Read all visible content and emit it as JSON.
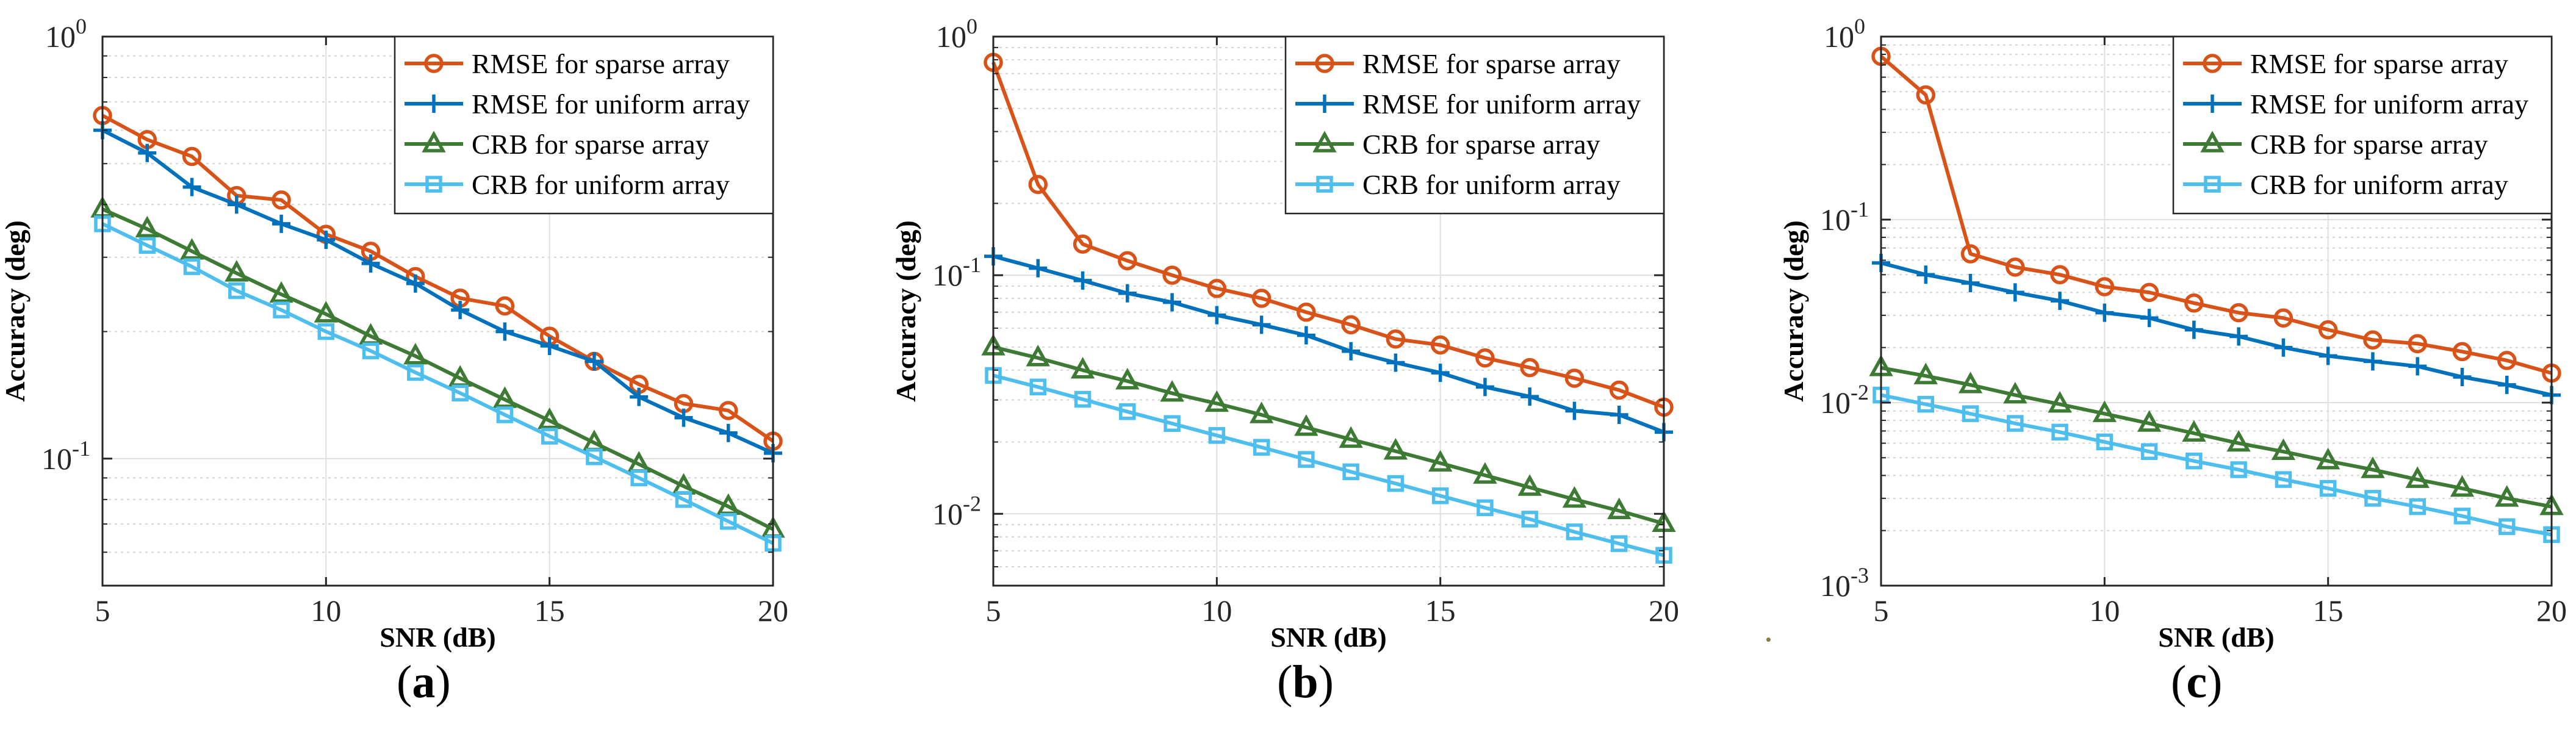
{
  "captions": {
    "a": "a",
    "b": "b",
    "c": "c"
  },
  "chart_data": [
    {
      "type": "line",
      "panel": "a",
      "xlabel": "SNR (dB)",
      "ylabel": "Accuracy (deg)",
      "yscale": "log",
      "xlim": [
        5,
        20
      ],
      "ylim": [
        0.05,
        1
      ],
      "xticks": [
        5,
        10,
        15,
        20
      ],
      "yticks": [
        {
          "value": 0.1,
          "base": "10",
          "exp": "-1"
        },
        {
          "value": 1,
          "base": "10",
          "exp": "0"
        }
      ],
      "grid": true,
      "legend_position": "top-right",
      "x": [
        5,
        6,
        7,
        8,
        9,
        10,
        11,
        12,
        13,
        14,
        15,
        16,
        17,
        18,
        19,
        20
      ],
      "series": [
        {
          "name": "RMSE for sparse array",
          "marker": "circle",
          "color": "#d95319",
          "values": [
            0.65,
            0.57,
            0.52,
            0.42,
            0.41,
            0.34,
            0.31,
            0.27,
            0.24,
            0.23,
            0.195,
            0.17,
            0.15,
            0.135,
            0.13,
            0.11
          ]
        },
        {
          "name": "RMSE for uniform array",
          "marker": "plus",
          "color": "#0072bd",
          "values": [
            0.6,
            0.53,
            0.44,
            0.4,
            0.36,
            0.33,
            0.29,
            0.26,
            0.225,
            0.2,
            0.185,
            0.17,
            0.14,
            0.125,
            0.115,
            0.103
          ]
        },
        {
          "name": "CRB for sparse array",
          "marker": "triangle",
          "color": "#3d7a33",
          "values": [
            0.39,
            0.35,
            0.31,
            0.275,
            0.245,
            0.22,
            0.195,
            0.175,
            0.155,
            0.138,
            0.123,
            0.109,
            0.097,
            0.086,
            0.077,
            0.068
          ]
        },
        {
          "name": "CRB for uniform array",
          "marker": "square",
          "color": "#4dbeee",
          "values": [
            0.36,
            0.32,
            0.285,
            0.25,
            0.225,
            0.2,
            0.18,
            0.16,
            0.143,
            0.127,
            0.113,
            0.101,
            0.09,
            0.08,
            0.071,
            0.063
          ]
        }
      ]
    },
    {
      "type": "line",
      "panel": "b",
      "xlabel": "SNR (dB)",
      "ylabel": "Accuracy (deg)",
      "yscale": "log",
      "xlim": [
        5,
        20
      ],
      "ylim": [
        0.005,
        1
      ],
      "xticks": [
        5,
        10,
        15,
        20
      ],
      "yticks": [
        {
          "value": 0.01,
          "base": "10",
          "exp": "-2"
        },
        {
          "value": 0.1,
          "base": "10",
          "exp": "-1"
        },
        {
          "value": 1,
          "base": "10",
          "exp": "0"
        }
      ],
      "grid": true,
      "legend_position": "top-right",
      "x": [
        5,
        6,
        7,
        8,
        9,
        10,
        11,
        12,
        13,
        14,
        15,
        16,
        17,
        18,
        19,
        20
      ],
      "series": [
        {
          "name": "RMSE for sparse array",
          "marker": "circle",
          "color": "#d95319",
          "values": [
            0.78,
            0.24,
            0.135,
            0.115,
            0.1,
            0.088,
            0.08,
            0.07,
            0.062,
            0.054,
            0.051,
            0.045,
            0.041,
            0.037,
            0.033,
            0.028
          ]
        },
        {
          "name": "RMSE for uniform array",
          "marker": "plus",
          "color": "#0072bd",
          "values": [
            0.12,
            0.107,
            0.095,
            0.084,
            0.077,
            0.068,
            0.062,
            0.056,
            0.048,
            0.043,
            0.039,
            0.034,
            0.031,
            0.027,
            0.026,
            0.022
          ]
        },
        {
          "name": "CRB for sparse array",
          "marker": "triangle",
          "color": "#3d7a33",
          "values": [
            0.05,
            0.045,
            0.04,
            0.036,
            0.032,
            0.029,
            0.026,
            0.023,
            0.0205,
            0.0183,
            0.0163,
            0.0145,
            0.0129,
            0.0115,
            0.0103,
            0.0091
          ]
        },
        {
          "name": "CRB for uniform array",
          "marker": "square",
          "color": "#4dbeee",
          "values": [
            0.038,
            0.034,
            0.0302,
            0.0268,
            0.0239,
            0.0213,
            0.019,
            0.0169,
            0.015,
            0.0134,
            0.0119,
            0.0106,
            0.0095,
            0.0084,
            0.0075,
            0.0067
          ]
        }
      ]
    },
    {
      "type": "line",
      "panel": "c",
      "xlabel": "SNR (dB)",
      "ylabel": "Accuracy (deg)",
      "yscale": "log",
      "xlim": [
        5,
        20
      ],
      "ylim": [
        0.001,
        1
      ],
      "xticks": [
        5,
        10,
        15,
        20
      ],
      "yticks": [
        {
          "value": 0.001,
          "base": "10",
          "exp": "-3"
        },
        {
          "value": 0.01,
          "base": "10",
          "exp": "-2"
        },
        {
          "value": 0.1,
          "base": "10",
          "exp": "-1"
        },
        {
          "value": 1,
          "base": "10",
          "exp": "0"
        }
      ],
      "grid": true,
      "legend_position": "top-right",
      "x": [
        5,
        6,
        7,
        8,
        9,
        10,
        11,
        12,
        13,
        14,
        15,
        16,
        17,
        18,
        19,
        20
      ],
      "series": [
        {
          "name": "RMSE for sparse array",
          "marker": "circle",
          "color": "#d95319",
          "values": [
            0.78,
            0.48,
            0.065,
            0.055,
            0.05,
            0.043,
            0.04,
            0.035,
            0.031,
            0.029,
            0.025,
            0.022,
            0.021,
            0.019,
            0.017,
            0.0145
          ]
        },
        {
          "name": "RMSE for uniform array",
          "marker": "plus",
          "color": "#0072bd",
          "values": [
            0.058,
            0.05,
            0.045,
            0.04,
            0.036,
            0.031,
            0.029,
            0.025,
            0.023,
            0.02,
            0.018,
            0.0168,
            0.0158,
            0.0138,
            0.0125,
            0.011
          ]
        },
        {
          "name": "CRB for sparse array",
          "marker": "triangle",
          "color": "#3d7a33",
          "values": [
            0.0155,
            0.014,
            0.0125,
            0.011,
            0.0098,
            0.0087,
            0.0077,
            0.0068,
            0.006,
            0.0054,
            0.0048,
            0.0043,
            0.0038,
            0.0034,
            0.003,
            0.0027
          ]
        },
        {
          "name": "CRB for uniform array",
          "marker": "square",
          "color": "#4dbeee",
          "values": [
            0.011,
            0.0098,
            0.0087,
            0.0077,
            0.0069,
            0.0061,
            0.0054,
            0.0048,
            0.0043,
            0.0038,
            0.0034,
            0.003,
            0.0027,
            0.0024,
            0.0021,
            0.0019
          ]
        }
      ]
    }
  ]
}
